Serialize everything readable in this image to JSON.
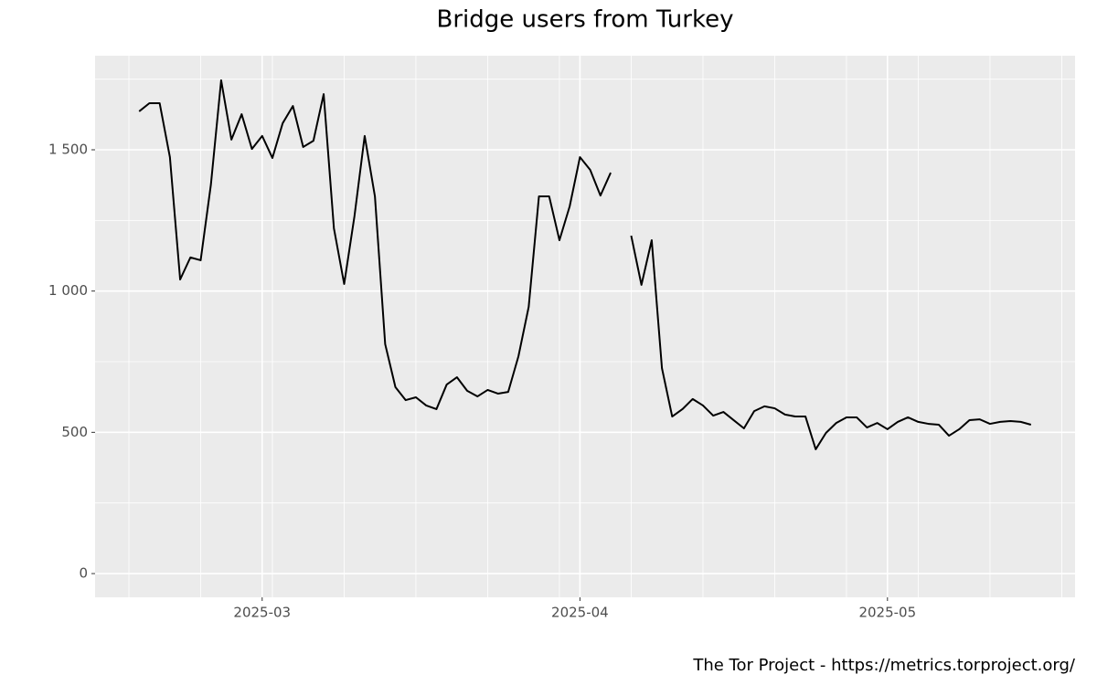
{
  "chart_data": {
    "type": "line",
    "title": "Bridge users from Turkey",
    "caption": "The Tor Project - https://metrics.torproject.org/",
    "categories": [
      null,
      null,
      null,
      null,
      null,
      null,
      null,
      null,
      null,
      null,
      null,
      null,
      "2025-03",
      null,
      null,
      null,
      null,
      null,
      null,
      null,
      null,
      null,
      null,
      null,
      null,
      null,
      null,
      null,
      null,
      null,
      null,
      null,
      null,
      null,
      null,
      null,
      null,
      null,
      null,
      null,
      null,
      null,
      null,
      "2025-04",
      null,
      null,
      null,
      null,
      null,
      null,
      null,
      null,
      null,
      null,
      null,
      null,
      null,
      null,
      null,
      null,
      null,
      null,
      null,
      null,
      null,
      null,
      null,
      null,
      null,
      null,
      null,
      null,
      null,
      "2025-05",
      null,
      null,
      null,
      null,
      null,
      null,
      null,
      null,
      null,
      null,
      null,
      null,
      null,
      null
    ],
    "series": [
      {
        "color": "#000000",
        "values": [
          1636,
          1665,
          1665,
          1474,
          1041,
          1119,
          1109,
          1377,
          1746,
          1536,
          1626,
          1503,
          1549,
          1471,
          1594,
          1655,
          1510,
          1532,
          1697,
          1222,
          1025,
          1264,
          1549,
          1335,
          812,
          660,
          614,
          624,
          595,
          582,
          669,
          695,
          647,
          627,
          650,
          637,
          643,
          769,
          944,
          1335,
          1335,
          1180,
          1300,
          1474,
          1429,
          1338,
          1419,
          null,
          1196,
          1022,
          1180,
          727,
          556,
          582,
          618,
          595,
          559,
          572,
          543,
          514,
          575,
          592,
          585,
          563,
          556,
          556,
          440,
          498,
          533,
          553,
          553,
          517,
          533,
          511,
          537,
          553,
          537,
          530,
          527,
          488,
          511,
          543,
          546,
          530,
          537,
          540,
          537,
          527
        ]
      }
    ],
    "ylim": [
      -84,
      1833
    ],
    "yticks": [
      0,
      500,
      {
        "value": 1000,
        "label": "1 000"
      },
      {
        "value": 1500,
        "label": "1 500"
      }
    ],
    "grid": true
  }
}
